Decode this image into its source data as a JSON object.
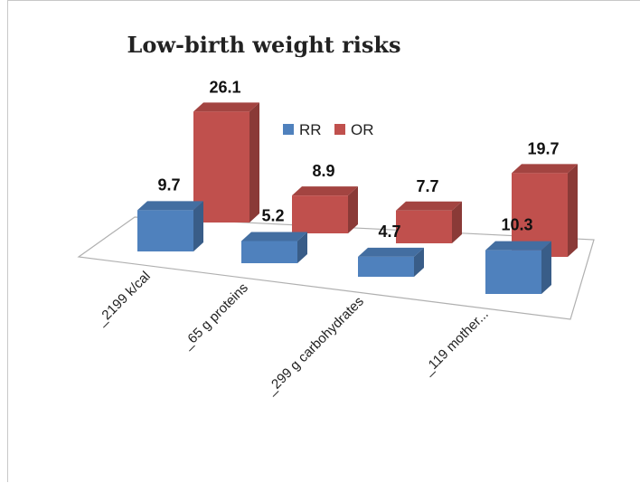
{
  "chart_data": {
    "type": "bar",
    "style": "3d-clustered-column",
    "title": "Low-birth weight risks",
    "categories": [
      "_2199 k/cal",
      "_65 g proteins",
      "_299 g carbohydrates",
      "_119 mother..."
    ],
    "series": [
      {
        "name": "RR",
        "values": [
          9.7,
          5.2,
          4.7,
          10.3
        ],
        "color": "#4f81bd"
      },
      {
        "name": "OR",
        "values": [
          26.1,
          8.9,
          7.7,
          19.7
        ],
        "color": "#c0504d"
      }
    ],
    "legend_position": "top-center",
    "grid": false,
    "xlabel": "",
    "ylabel": ""
  }
}
